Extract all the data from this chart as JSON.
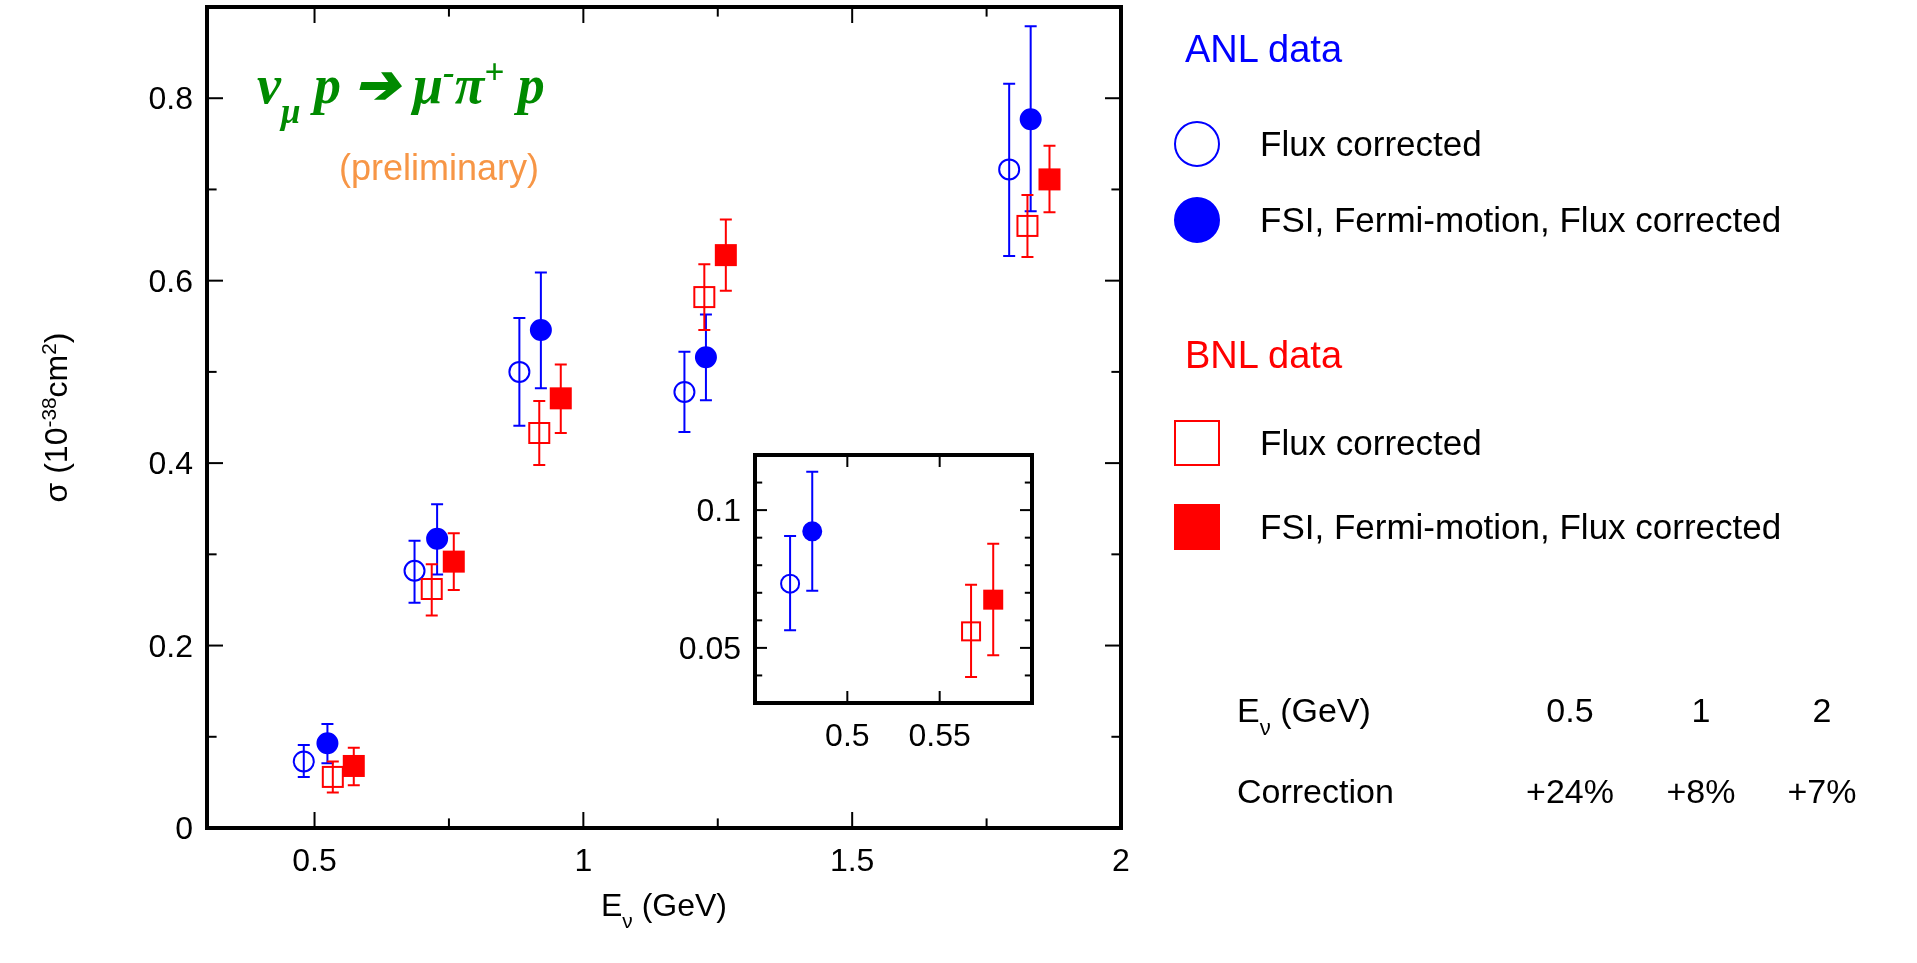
{
  "chart_data": [
    {
      "type": "scatter",
      "title": "ν$_{μ}$ p ➔ μ$^{-}$π$^{+}$ p",
      "xlabel": "E$_{ν}$ (GeV)",
      "ylabel": "σ (10$^{-38}$cm$^{2}$)",
      "xlim": [
        0.3,
        2
      ],
      "ylim": [
        0,
        0.9
      ],
      "xticks": [
        0.5,
        {
          "value": 0.75,
          "label": null
        },
        1,
        {
          "value": 1.25,
          "label": null
        },
        1.5,
        {
          "value": 1.75,
          "label": null
        },
        2
      ],
      "yticks": [
        0,
        {
          "value": 0.1,
          "label": null
        },
        0.2,
        {
          "value": 0.3,
          "label": null
        },
        0.4,
        {
          "value": 0.5,
          "label": null
        },
        0.6,
        {
          "value": 0.7,
          "label": null
        },
        0.8
      ],
      "legend": "right",
      "annotations": [
        "(preliminary)",
        "ANL data",
        "BNL data",
        "E$_{ν}$ (GeV)",
        "0.5",
        "1",
        "2",
        "Correction",
        "+24%",
        "+8%",
        "+7%"
      ],
      "series": [
        {
          "name": "Flux corrected",
          "color": "#0000ff",
          "marker": "circle",
          "x": [
            0.48,
            0.686,
            0.881,
            1.188,
            1.792
          ],
          "values": [
            0.073,
            0.282,
            0.5,
            0.478,
            0.722
          ],
          "errors": [
            [
              0.056,
              0.091
            ],
            [
              0.247,
              0.315
            ],
            [
              0.441,
              0.559
            ],
            [
              0.434,
              0.522
            ],
            [
              0.627,
              0.816
            ]
          ]
        },
        {
          "name": "FSI, Fermi-motion, Flux corrected",
          "color": "#0000ff",
          "marker": "circle",
          "x": [
            0.524,
            0.728,
            0.921,
            1.228,
            1.832
          ],
          "values": [
            0.093,
            0.317,
            0.546,
            0.516,
            0.777
          ],
          "errors": [
            [
              0.071,
              0.114
            ],
            [
              0.278,
              0.355
            ],
            [
              0.482,
              0.609
            ],
            [
              0.469,
              0.563
            ],
            [
              0.676,
              0.879
            ]
          ]
        },
        {
          "name": "Flux corrected",
          "color": "#ff0000",
          "marker": "square",
          "x": [
            0.534,
            0.718,
            0.918,
            1.225,
            1.826
          ],
          "values": [
            0.056,
            0.262,
            0.433,
            0.582,
            0.66
          ],
          "errors": [
            [
              0.039,
              0.073
            ],
            [
              0.233,
              0.289
            ],
            [
              0.398,
              0.468
            ],
            [
              0.546,
              0.618
            ],
            [
              0.626,
              0.694
            ]
          ]
        },
        {
          "name": "FSI, Fermi-motion, Flux corrected",
          "color": "#ff0000",
          "marker": "square",
          "x": [
            0.573,
            0.759,
            0.958,
            1.265,
            1.867
          ],
          "values": [
            0.068,
            0.292,
            0.471,
            0.628,
            0.711
          ],
          "errors": [
            [
              0.047,
              0.088
            ],
            [
              0.261,
              0.323
            ],
            [
              0.433,
              0.508
            ],
            [
              0.589,
              0.667
            ],
            [
              0.675,
              0.748
            ]
          ]
        }
      ]
    },
    {
      "type": "scatter",
      "xlim": [
        0.45,
        0.6
      ],
      "ylim": [
        0.03,
        0.12
      ],
      "xticks": [
        0.5,
        0.55
      ],
      "yticks": [
        {
          "value": 0.04,
          "label": null
        },
        0.05,
        {
          "value": 0.06,
          "label": null
        },
        {
          "value": 0.07,
          "label": null
        },
        {
          "value": 0.08,
          "label": null
        },
        {
          "value": 0.09,
          "label": null
        },
        0.1,
        {
          "value": 0.11,
          "label": null
        }
      ],
      "series": [
        {
          "color": "#0000ff",
          "marker": "circle",
          "x": [
            0.469
          ],
          "values": [
            0.0733
          ],
          "errors": [
            [
              0.0564,
              0.0906
            ]
          ]
        },
        {
          "color": "#0000ff",
          "marker": "circle",
          "x": [
            0.481
          ],
          "values": [
            0.0923
          ],
          "errors": [
            [
              0.0707,
              0.1139
            ]
          ]
        },
        {
          "color": "#ff0000",
          "marker": "square",
          "x": [
            0.567
          ],
          "values": [
            0.056
          ],
          "errors": [
            [
              0.0394,
              0.0729
            ]
          ]
        },
        {
          "color": "#ff0000",
          "marker": "square",
          "x": [
            0.579
          ],
          "values": [
            0.0675
          ],
          "errors": [
            [
              0.0473,
              0.0878
            ]
          ]
        }
      ]
    }
  ]
}
